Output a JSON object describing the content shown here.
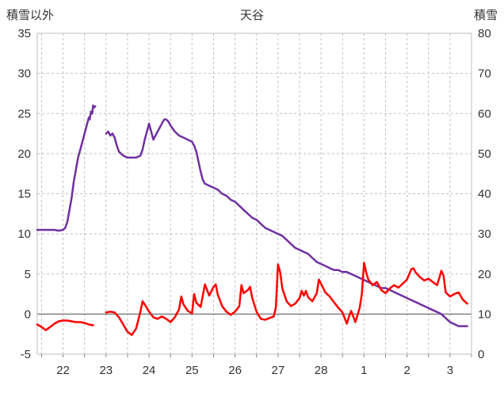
{
  "header": {
    "left_axis_title": "積雪以外",
    "title": "天谷",
    "right_axis_title": "積雪"
  },
  "chart_data": {
    "type": "line",
    "title": "天谷",
    "legend": "none",
    "grid": true,
    "x_axis": {
      "range": [
        21.4,
        31.5
      ],
      "gridline_step": 0.5,
      "tick_positions": [
        22,
        23,
        24,
        25,
        26,
        27,
        28,
        29,
        30,
        31
      ],
      "tick_labels": [
        "22",
        "23",
        "24",
        "25",
        "26",
        "27",
        "28",
        "1",
        "2",
        "3"
      ]
    },
    "left_axis": {
      "title": "積雪以外",
      "range": [
        -5,
        35
      ],
      "ticks": [
        -5,
        0,
        5,
        10,
        15,
        20,
        25,
        30,
        35
      ]
    },
    "right_axis": {
      "title": "積雪",
      "range": [
        0,
        80
      ],
      "ticks": [
        0,
        10,
        20,
        30,
        40,
        50,
        60,
        70,
        80
      ]
    },
    "colors": {
      "grid": "#c0c0c0",
      "zero_line": "#808080",
      "border": "#bfbfbf",
      "text": "#333333",
      "red_series": "#ff0000",
      "purple_series": "#7030a0"
    },
    "series": [
      {
        "id": "purple-line",
        "axis": "right",
        "color": "#7030a0",
        "points": [
          [
            21.4,
            31
          ],
          [
            21.6,
            31
          ],
          [
            21.8,
            31
          ],
          [
            21.9,
            30.8
          ],
          [
            22.0,
            31
          ],
          [
            22.05,
            31.5
          ],
          [
            22.1,
            33
          ],
          [
            22.15,
            36
          ],
          [
            22.2,
            39
          ],
          [
            22.25,
            43
          ],
          [
            22.3,
            46
          ],
          [
            22.35,
            49
          ],
          [
            22.4,
            51
          ],
          [
            22.45,
            53
          ],
          [
            22.5,
            55
          ],
          [
            22.55,
            57
          ],
          [
            22.6,
            59
          ],
          [
            22.62,
            58.5
          ],
          [
            22.65,
            60.5
          ],
          [
            22.68,
            60
          ],
          [
            22.7,
            62
          ],
          [
            22.72,
            61.5
          ],
          [
            22.75,
            61.8
          ],
          null,
          [
            23.0,
            55
          ],
          [
            23.05,
            55.5
          ],
          [
            23.1,
            54.5
          ],
          [
            23.15,
            55
          ],
          [
            23.2,
            54
          ],
          [
            23.25,
            52
          ],
          [
            23.3,
            50.5
          ],
          [
            23.35,
            50
          ],
          [
            23.4,
            49.5
          ],
          [
            23.5,
            49
          ],
          [
            23.6,
            49
          ],
          [
            23.7,
            49
          ],
          [
            23.8,
            49.5
          ],
          [
            23.85,
            51
          ],
          [
            23.9,
            53.5
          ],
          [
            23.95,
            55.5
          ],
          [
            24.0,
            57.5
          ],
          [
            24.05,
            55.5
          ],
          [
            24.1,
            53.5
          ],
          [
            24.15,
            54.5
          ],
          [
            24.2,
            55.5
          ],
          [
            24.25,
            56.5
          ],
          [
            24.3,
            57.5
          ],
          [
            24.35,
            58.5
          ],
          [
            24.4,
            58.5
          ],
          [
            24.45,
            58
          ],
          [
            24.5,
            57
          ],
          [
            24.6,
            55.5
          ],
          [
            24.7,
            54.5
          ],
          [
            24.8,
            54
          ],
          [
            24.9,
            53.5
          ],
          [
            25.0,
            53
          ],
          [
            25.05,
            52
          ],
          [
            25.1,
            50.5
          ],
          [
            25.15,
            48
          ],
          [
            25.2,
            45.5
          ],
          [
            25.25,
            43.5
          ],
          [
            25.3,
            42.5
          ],
          [
            25.4,
            42
          ],
          [
            25.5,
            41.5
          ],
          [
            25.6,
            41
          ],
          [
            25.7,
            40
          ],
          [
            25.8,
            39.5
          ],
          [
            25.9,
            38.5
          ],
          [
            26.0,
            38
          ],
          [
            26.1,
            37
          ],
          [
            26.2,
            36
          ],
          [
            26.3,
            35
          ],
          [
            26.4,
            34
          ],
          [
            26.5,
            33.5
          ],
          [
            26.6,
            32.5
          ],
          [
            26.7,
            31.5
          ],
          [
            26.8,
            31
          ],
          [
            26.9,
            30.5
          ],
          [
            27.0,
            30
          ],
          [
            27.1,
            29.5
          ],
          [
            27.2,
            28.5
          ],
          [
            27.3,
            27.5
          ],
          [
            27.4,
            26.5
          ],
          [
            27.5,
            26
          ],
          [
            27.6,
            25.5
          ],
          [
            27.7,
            25
          ],
          [
            27.8,
            24
          ],
          [
            27.9,
            23
          ],
          [
            28.0,
            22.5
          ],
          [
            28.1,
            22
          ],
          [
            28.2,
            21.5
          ],
          [
            28.3,
            21
          ],
          [
            28.4,
            21
          ],
          [
            28.5,
            20.5
          ],
          [
            28.6,
            20.5
          ],
          [
            28.7,
            20
          ],
          [
            28.8,
            19.5
          ],
          [
            28.9,
            19
          ],
          [
            29.0,
            18.5
          ],
          [
            29.1,
            18
          ],
          [
            29.2,
            17.5
          ],
          [
            29.3,
            17
          ],
          [
            29.4,
            16.5
          ],
          [
            29.5,
            16.5
          ],
          [
            29.6,
            16
          ],
          [
            29.7,
            15.5
          ],
          [
            29.8,
            15
          ],
          [
            29.9,
            14.5
          ],
          [
            30.0,
            14
          ],
          [
            30.1,
            13.5
          ],
          [
            30.2,
            13
          ],
          [
            30.3,
            12.5
          ],
          [
            30.4,
            12
          ],
          [
            30.5,
            11.5
          ],
          [
            30.6,
            11
          ],
          [
            30.7,
            10.5
          ],
          [
            30.8,
            10
          ],
          [
            30.9,
            9
          ],
          [
            31.0,
            8
          ],
          [
            31.1,
            7.5
          ],
          [
            31.2,
            7
          ],
          [
            31.3,
            7
          ],
          [
            31.4,
            7
          ]
        ]
      },
      {
        "id": "red-line",
        "axis": "left",
        "color": "#ff0000",
        "points": [
          [
            21.4,
            -1.3
          ],
          [
            21.5,
            -1.6
          ],
          [
            21.6,
            -2.0
          ],
          [
            21.7,
            -1.6
          ],
          [
            21.8,
            -1.2
          ],
          [
            21.9,
            -0.9
          ],
          [
            22.0,
            -0.8
          ],
          [
            22.1,
            -0.8
          ],
          [
            22.2,
            -0.9
          ],
          [
            22.3,
            -1.0
          ],
          [
            22.4,
            -1.0
          ],
          [
            22.5,
            -1.1
          ],
          [
            22.6,
            -1.3
          ],
          [
            22.7,
            -1.4
          ],
          null,
          [
            23.0,
            0.2
          ],
          [
            23.1,
            0.3
          ],
          [
            23.2,
            0.2
          ],
          [
            23.3,
            -0.4
          ],
          [
            23.4,
            -1.3
          ],
          [
            23.5,
            -2.2
          ],
          [
            23.6,
            -2.6
          ],
          [
            23.7,
            -1.8
          ],
          [
            23.8,
            0.3
          ],
          [
            23.85,
            1.6
          ],
          [
            23.9,
            1.2
          ],
          [
            24.0,
            0.3
          ],
          [
            24.1,
            -0.4
          ],
          [
            24.2,
            -0.6
          ],
          [
            24.3,
            -0.3
          ],
          [
            24.4,
            -0.6
          ],
          [
            24.5,
            -1.0
          ],
          [
            24.6,
            -0.4
          ],
          [
            24.7,
            0.6
          ],
          [
            24.75,
            2.2
          ],
          [
            24.8,
            1.2
          ],
          [
            24.9,
            0.4
          ],
          [
            25.0,
            0.1
          ],
          [
            25.05,
            2.5
          ],
          [
            25.1,
            1.4
          ],
          [
            25.2,
            0.9
          ],
          [
            25.3,
            3.7
          ],
          [
            25.4,
            2.3
          ],
          [
            25.5,
            3.4
          ],
          [
            25.55,
            3.7
          ],
          [
            25.6,
            2.4
          ],
          [
            25.7,
            1.0
          ],
          [
            25.8,
            0.3
          ],
          [
            25.9,
            -0.1
          ],
          [
            26.0,
            0.3
          ],
          [
            26.1,
            1.0
          ],
          [
            26.15,
            3.6
          ],
          [
            26.2,
            2.6
          ],
          [
            26.3,
            3.0
          ],
          [
            26.35,
            3.4
          ],
          [
            26.4,
            2.0
          ],
          [
            26.5,
            0.3
          ],
          [
            26.6,
            -0.6
          ],
          [
            26.7,
            -0.7
          ],
          [
            26.8,
            -0.5
          ],
          [
            26.9,
            -0.3
          ],
          [
            26.95,
            0.8
          ],
          [
            27.0,
            6.2
          ],
          [
            27.05,
            5.2
          ],
          [
            27.1,
            3.2
          ],
          [
            27.2,
            1.6
          ],
          [
            27.3,
            1.0
          ],
          [
            27.4,
            1.3
          ],
          [
            27.5,
            2.0
          ],
          [
            27.55,
            2.9
          ],
          [
            27.6,
            2.3
          ],
          [
            27.65,
            2.9
          ],
          [
            27.7,
            2.1
          ],
          [
            27.8,
            1.6
          ],
          [
            27.9,
            2.6
          ],
          [
            27.95,
            4.3
          ],
          [
            28.0,
            3.8
          ],
          [
            28.1,
            2.7
          ],
          [
            28.2,
            2.2
          ],
          [
            28.3,
            1.5
          ],
          [
            28.4,
            0.8
          ],
          [
            28.5,
            0.2
          ],
          [
            28.6,
            -1.2
          ],
          [
            28.65,
            -0.3
          ],
          [
            28.7,
            0.4
          ],
          [
            28.8,
            -1.0
          ],
          [
            28.9,
            0.8
          ],
          [
            28.95,
            2.5
          ],
          [
            29.0,
            6.4
          ],
          [
            29.05,
            5.2
          ],
          [
            29.1,
            4.3
          ],
          [
            29.2,
            3.6
          ],
          [
            29.3,
            4.0
          ],
          [
            29.4,
            3.0
          ],
          [
            29.5,
            2.6
          ],
          [
            29.6,
            3.2
          ],
          [
            29.7,
            3.6
          ],
          [
            29.8,
            3.3
          ],
          [
            29.9,
            3.8
          ],
          [
            30.0,
            4.3
          ],
          [
            30.1,
            5.6
          ],
          [
            30.15,
            5.7
          ],
          [
            30.2,
            5.2
          ],
          [
            30.3,
            4.6
          ],
          [
            30.4,
            4.2
          ],
          [
            30.5,
            4.4
          ],
          [
            30.6,
            4.0
          ],
          [
            30.7,
            3.6
          ],
          [
            30.8,
            5.4
          ],
          [
            30.85,
            4.8
          ],
          [
            30.9,
            2.7
          ],
          [
            31.0,
            2.2
          ],
          [
            31.1,
            2.5
          ],
          [
            31.2,
            2.7
          ],
          [
            31.3,
            1.8
          ],
          [
            31.4,
            1.3
          ]
        ]
      }
    ]
  }
}
